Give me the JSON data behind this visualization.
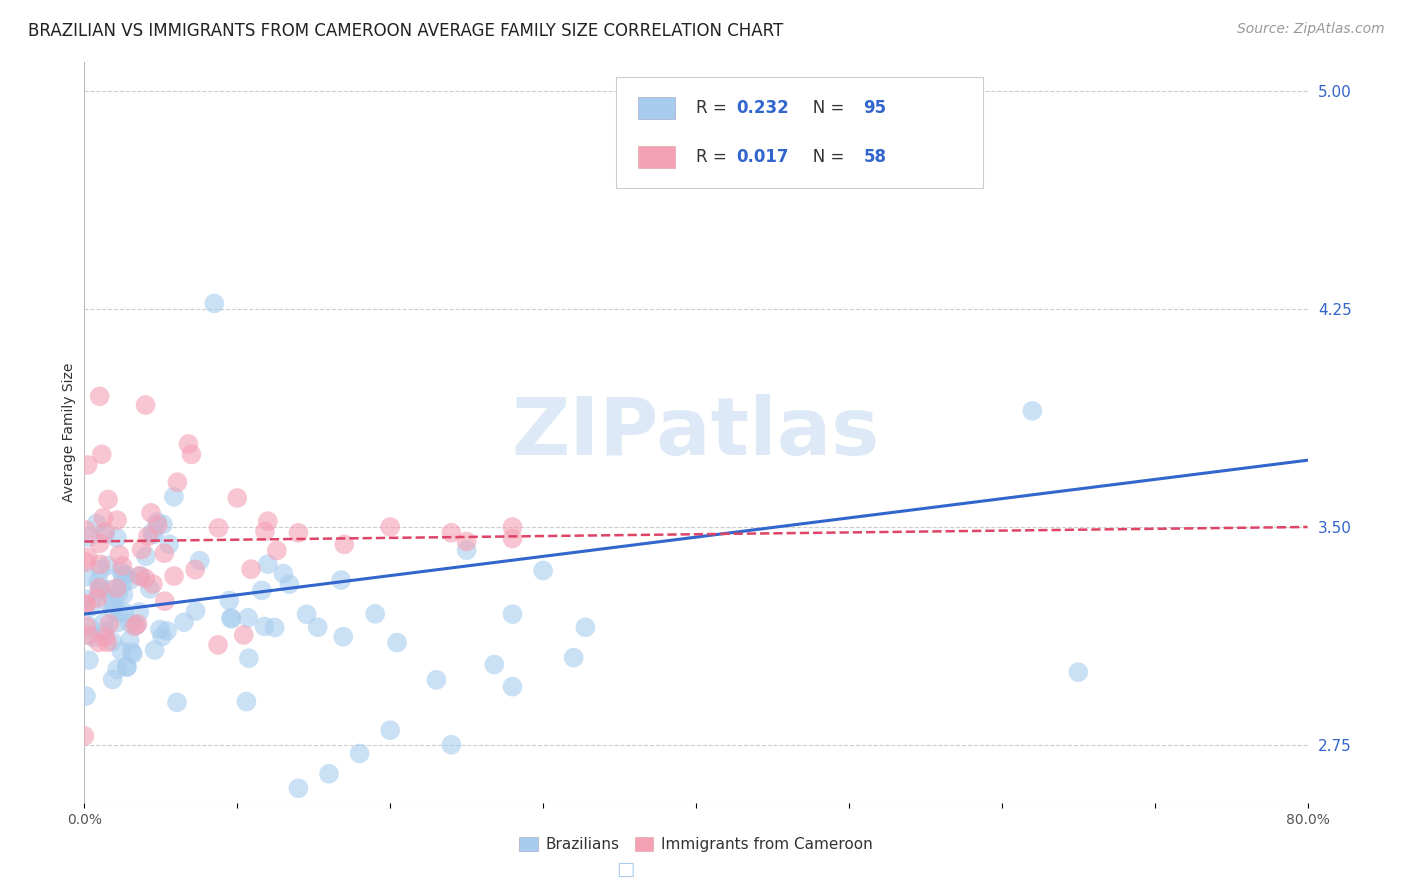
{
  "title": "BRAZILIAN VS IMMIGRANTS FROM CAMEROON AVERAGE FAMILY SIZE CORRELATION CHART",
  "source": "Source: ZipAtlas.com",
  "ylabel": "Average Family Size",
  "right_yticks": [
    2.75,
    3.5,
    4.25,
    5.0
  ],
  "watermark": "ZIPatlas",
  "r_brazilian": 0.232,
  "n_brazilian": 95,
  "r_cameroon": 0.017,
  "n_cameroon": 58,
  "blue_scatter_color": "#A8CCEE",
  "pink_scatter_color": "#F4A0B5",
  "blue_line_color": "#3366CC",
  "pink_line_color": "#DD4466",
  "blue_legend_color": "#A8CCEE",
  "pink_legend_color": "#F4A0B5",
  "blue_text_color": "#3366CC",
  "xlim": [
    0.0,
    0.8
  ],
  "ylim": [
    2.55,
    5.1
  ],
  "background_color": "#FFFFFF",
  "grid_color": "#CCCCCC",
  "title_fontsize": 12,
  "axis_label_fontsize": 10,
  "tick_fontsize": 10,
  "source_fontsize": 10,
  "blue_line_y0": 3.2,
  "blue_line_y1": 3.73,
  "pink_line_y0": 3.45,
  "pink_line_y1": 3.5
}
